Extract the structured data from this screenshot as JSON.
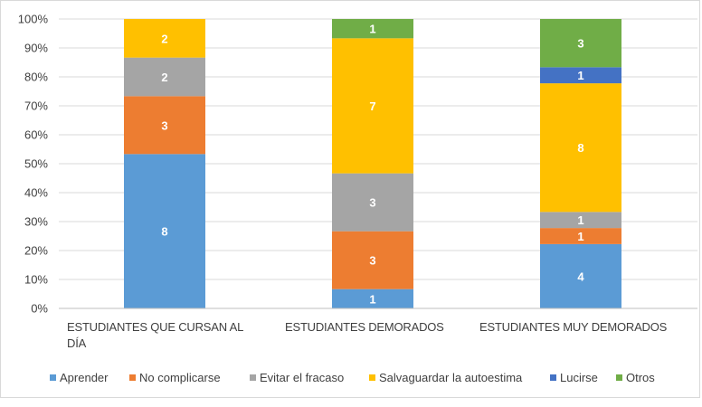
{
  "chart_data": {
    "type": "bar",
    "stacked": "percent",
    "title": "",
    "xlabel": "",
    "ylabel": "",
    "ylim": [
      0,
      100
    ],
    "y_ticks": [
      "0%",
      "10%",
      "20%",
      "30%",
      "40%",
      "50%",
      "60%",
      "70%",
      "80%",
      "90%",
      "100%"
    ],
    "grid": true,
    "legend_position": "bottom",
    "categories": [
      [
        "ESTUDIANTES QUE CURSAN AL",
        "DÍA"
      ],
      [
        "ESTUDIANTES DEMORADOS"
      ],
      [
        "ESTUDIANTES MUY DEMORADOS"
      ]
    ],
    "series": [
      {
        "name": "Aprender",
        "color": "#5b9bd5",
        "values": [
          8,
          1,
          4
        ]
      },
      {
        "name": "No complicarse",
        "color": "#ed7d31",
        "values": [
          3,
          3,
          1
        ]
      },
      {
        "name": "Evitar el fracaso",
        "color": "#a5a5a5",
        "values": [
          2,
          3,
          1
        ]
      },
      {
        "name": "Salvaguardar la autoestima",
        "color": "#ffc000",
        "values": [
          2,
          7,
          8
        ]
      },
      {
        "name": "Lucirse",
        "color": "#4472c4",
        "values": [
          0,
          0,
          1
        ]
      },
      {
        "name": "Otros",
        "color": "#70ad47",
        "values": [
          0,
          1,
          3
        ]
      }
    ]
  }
}
